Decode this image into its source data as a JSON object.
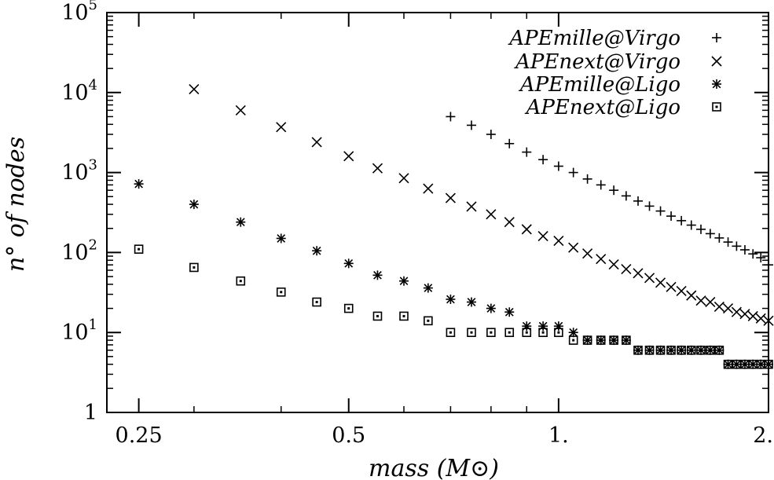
{
  "chart_data": {
    "type": "scatter",
    "title": "",
    "xlabel": "mass (M⊙)",
    "ylabel": "n° of nodes",
    "x_scale": "log",
    "y_scale": "log",
    "xlim": [
      0.225,
      2.0
    ],
    "ylim": [
      1,
      100000
    ],
    "x_ticks": [
      {
        "value": 0.25,
        "label": "0.25"
      },
      {
        "value": 0.5,
        "label": "0.5"
      },
      {
        "value": 1.0,
        "label": "1."
      },
      {
        "value": 2.0,
        "label": "2."
      }
    ],
    "y_ticks": [
      {
        "value": 1,
        "base": "1",
        "exp": ""
      },
      {
        "value": 10,
        "base": "10",
        "exp": "1"
      },
      {
        "value": 100,
        "base": "10",
        "exp": "2"
      },
      {
        "value": 1000,
        "base": "10",
        "exp": "3"
      },
      {
        "value": 10000,
        "base": "10",
        "exp": "4"
      },
      {
        "value": 100000,
        "base": "10",
        "exp": "5"
      }
    ],
    "grid": false,
    "legend": "top-right",
    "series": [
      {
        "name": "APEmille@Virgo",
        "marker": "plus",
        "x": [
          0.7,
          0.75,
          0.8,
          0.85,
          0.9,
          0.95,
          1.0,
          1.05,
          1.1,
          1.15,
          1.2,
          1.25,
          1.3,
          1.35,
          1.4,
          1.45,
          1.5,
          1.55,
          1.6,
          1.65,
          1.7,
          1.75,
          1.8,
          1.85,
          1.9,
          1.95,
          2.0
        ],
        "y": [
          5000,
          3900,
          3000,
          2300,
          1800,
          1450,
          1200,
          1000,
          830,
          700,
          600,
          510,
          440,
          380,
          330,
          285,
          250,
          220,
          195,
          172,
          152,
          135,
          120,
          108,
          96,
          86,
          70
        ]
      },
      {
        "name": "APEnext@Virgo",
        "marker": "cross",
        "x": [
          0.3,
          0.35,
          0.4,
          0.45,
          0.5,
          0.55,
          0.6,
          0.65,
          0.7,
          0.75,
          0.8,
          0.85,
          0.9,
          0.95,
          1.0,
          1.05,
          1.1,
          1.15,
          1.2,
          1.25,
          1.3,
          1.35,
          1.4,
          1.45,
          1.5,
          1.55,
          1.6,
          1.65,
          1.7,
          1.75,
          1.8,
          1.85,
          1.9,
          1.95,
          2.0
        ],
        "y": [
          11000,
          6000,
          3700,
          2400,
          1600,
          1130,
          850,
          630,
          480,
          375,
          300,
          240,
          195,
          160,
          140,
          115,
          97,
          83,
          71,
          62,
          55,
          48,
          42,
          37,
          33,
          29,
          25,
          24,
          21,
          20,
          18,
          17,
          16,
          15,
          14
        ]
      },
      {
        "name": "APEmille@Ligo",
        "marker": "star",
        "x": [
          0.25,
          0.3,
          0.35,
          0.4,
          0.45,
          0.5,
          0.55,
          0.6,
          0.65,
          0.7,
          0.75,
          0.8,
          0.85,
          0.9,
          0.95,
          1.0,
          1.05,
          1.1,
          1.15,
          1.2,
          1.25,
          1.3,
          1.35,
          1.4,
          1.45,
          1.5,
          1.55,
          1.6,
          1.65,
          1.7,
          1.75,
          1.8,
          1.85,
          1.9,
          1.95,
          2.0
        ],
        "y": [
          720,
          400,
          240,
          150,
          105,
          73,
          52,
          44,
          36,
          26,
          24,
          20,
          18,
          12,
          12,
          12,
          10,
          8,
          8,
          8,
          8,
          6,
          6,
          6,
          6,
          6,
          6,
          6,
          6,
          6,
          4,
          4,
          4,
          4,
          4,
          4
        ]
      },
      {
        "name": "APEnext@Ligo",
        "marker": "box",
        "x": [
          0.25,
          0.3,
          0.35,
          0.4,
          0.45,
          0.5,
          0.55,
          0.6,
          0.65,
          0.7,
          0.75,
          0.8,
          0.85,
          0.9,
          0.95,
          1.0,
          1.05,
          1.1,
          1.15,
          1.2,
          1.25,
          1.3,
          1.35,
          1.4,
          1.45,
          1.5,
          1.55,
          1.6,
          1.65,
          1.7,
          1.75,
          1.8,
          1.85,
          1.9,
          1.95,
          2.0
        ],
        "y": [
          110,
          65,
          44,
          32,
          24,
          20,
          16,
          16,
          14,
          10,
          10,
          10,
          10,
          10,
          10,
          10,
          8,
          8,
          8,
          8,
          8,
          6,
          6,
          6,
          6,
          6,
          6,
          6,
          6,
          6,
          4,
          4,
          4,
          4,
          4,
          4
        ]
      }
    ]
  }
}
